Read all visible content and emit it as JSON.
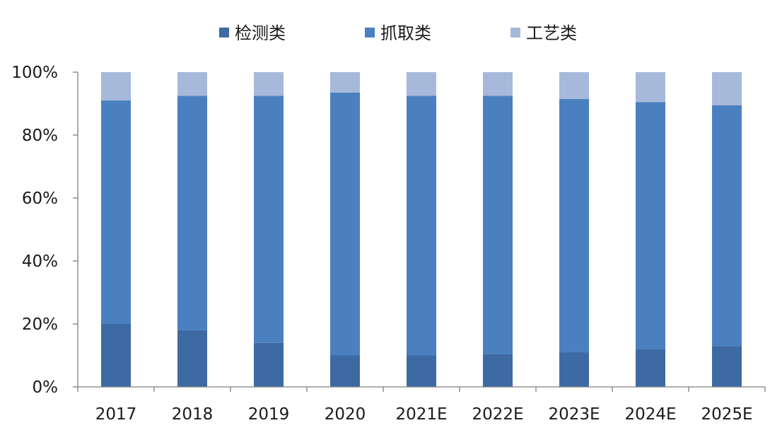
{
  "chart_data": {
    "type": "bar",
    "stacked": true,
    "categories": [
      "2017",
      "2018",
      "2019",
      "2020",
      "2021E",
      "2022E",
      "2023E",
      "2024E",
      "2025E"
    ],
    "series": [
      {
        "name": "检测类",
        "color": "#3e6aa3",
        "values": [
          20,
          18,
          14,
          10,
          10,
          10.5,
          11,
          12,
          13
        ]
      },
      {
        "name": "抓取类",
        "color": "#4a80bf",
        "values": [
          71,
          74.5,
          78.5,
          83.5,
          82.5,
          82,
          80.5,
          78.5,
          76.5
        ]
      },
      {
        "name": "工艺类",
        "color": "#a6b9da",
        "values": [
          9,
          7.5,
          7.5,
          6.5,
          7.5,
          7.5,
          8.5,
          9.5,
          10.5
        ]
      }
    ],
    "ylim": [
      0,
      100
    ],
    "yticks": [
      "0%",
      "20%",
      "40%",
      "60%",
      "80%",
      "100%"
    ],
    "legend_position": "top-center",
    "grid": false,
    "title": "",
    "xlabel": "",
    "ylabel": ""
  }
}
